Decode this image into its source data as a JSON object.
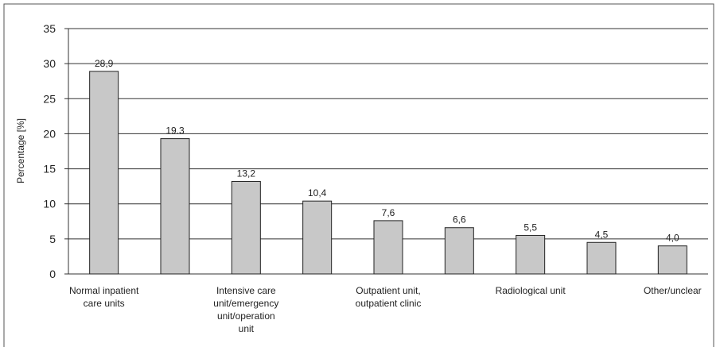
{
  "chart_data": {
    "type": "bar",
    "y_label": "Percentage [%]",
    "categories": [
      "Normal inpatient care units",
      null,
      "Intensive care unit/emergency unit/operation unit",
      null,
      "Outpatient unit, outpatient clinic",
      null,
      "Radiological unit",
      null,
      "Other/unclear"
    ],
    "values": [
      28.9,
      19.3,
      13.2,
      10.4,
      7.6,
      6.6,
      5.5,
      4.5,
      4.0
    ],
    "value_labels": [
      "28,9",
      "19.3",
      "13,2",
      "10,4",
      "7,6",
      "6,6",
      "5,5",
      "4,5",
      "4,0"
    ],
    "color": "#c8c8c8",
    "ylim": [
      0,
      35
    ],
    "yticks": [
      0,
      5,
      10,
      15,
      20,
      25,
      30,
      35
    ],
    "grid": true
  }
}
